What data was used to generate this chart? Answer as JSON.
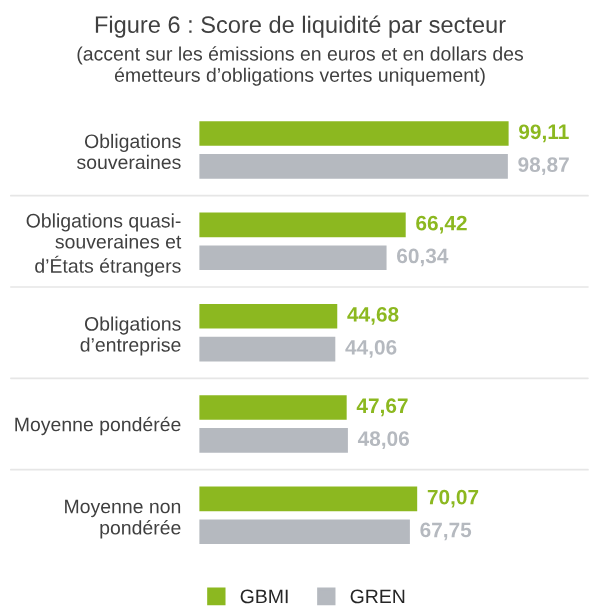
{
  "chart_data": {
    "type": "bar",
    "orientation": "horizontal",
    "title": "Figure 6 : Score de liquidité par secteur",
    "subtitle": "(accent sur les émissions en euros et en dollars des\németteurs d’obligations vertes uniquement)",
    "categories": [
      "Obligations\nsouveraines",
      "Obligations quasi-\nsouveraines et\nd’États étrangers",
      "Obligations\nd’entreprise",
      "Moyenne pondérée",
      "Moyenne non\npondérée"
    ],
    "series": [
      {
        "name": "GBMI",
        "color": "#8cb820",
        "values": [
          99.11,
          66.42,
          44.68,
          47.67,
          70.07
        ],
        "value_labels": [
          "99,11",
          "66,42",
          "44,68",
          "47,67",
          "70,07"
        ]
      },
      {
        "name": "GREN",
        "color": "#b5b9bf",
        "values": [
          98.87,
          60.34,
          44.06,
          48.06,
          67.75
        ],
        "value_labels": [
          "98,87",
          "60,34",
          "44,06",
          "48,06",
          "67,75"
        ]
      }
    ],
    "legend": "bottom",
    "grid": false
  }
}
